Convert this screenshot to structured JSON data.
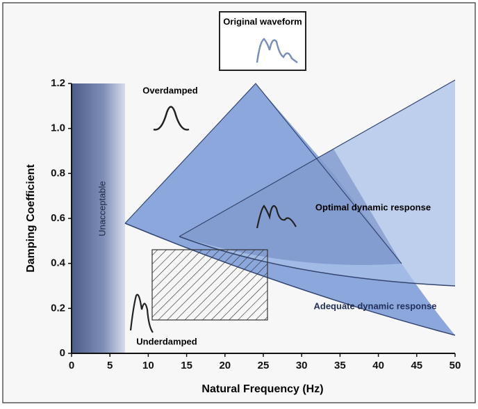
{
  "chart_data": {
    "type": "region",
    "title": "Original waveform",
    "xlabel": "Natural Frequency (Hz)",
    "ylabel": "Damping Coefficient",
    "xlim": [
      0,
      50
    ],
    "ylim": [
      0,
      1.2
    ],
    "xticks": [
      0,
      5,
      10,
      15,
      20,
      25,
      30,
      35,
      40,
      45,
      50
    ],
    "yticks": [
      0,
      0.2,
      0.4,
      0.6,
      0.8,
      {
        "value": 1.0,
        "label": "1.0"
      },
      1.2
    ],
    "annotations": [
      "Unacceptable",
      "Overdamped",
      "Optimal dynamic response",
      "Adequate dynamic response",
      "Underdamped"
    ]
  }
}
